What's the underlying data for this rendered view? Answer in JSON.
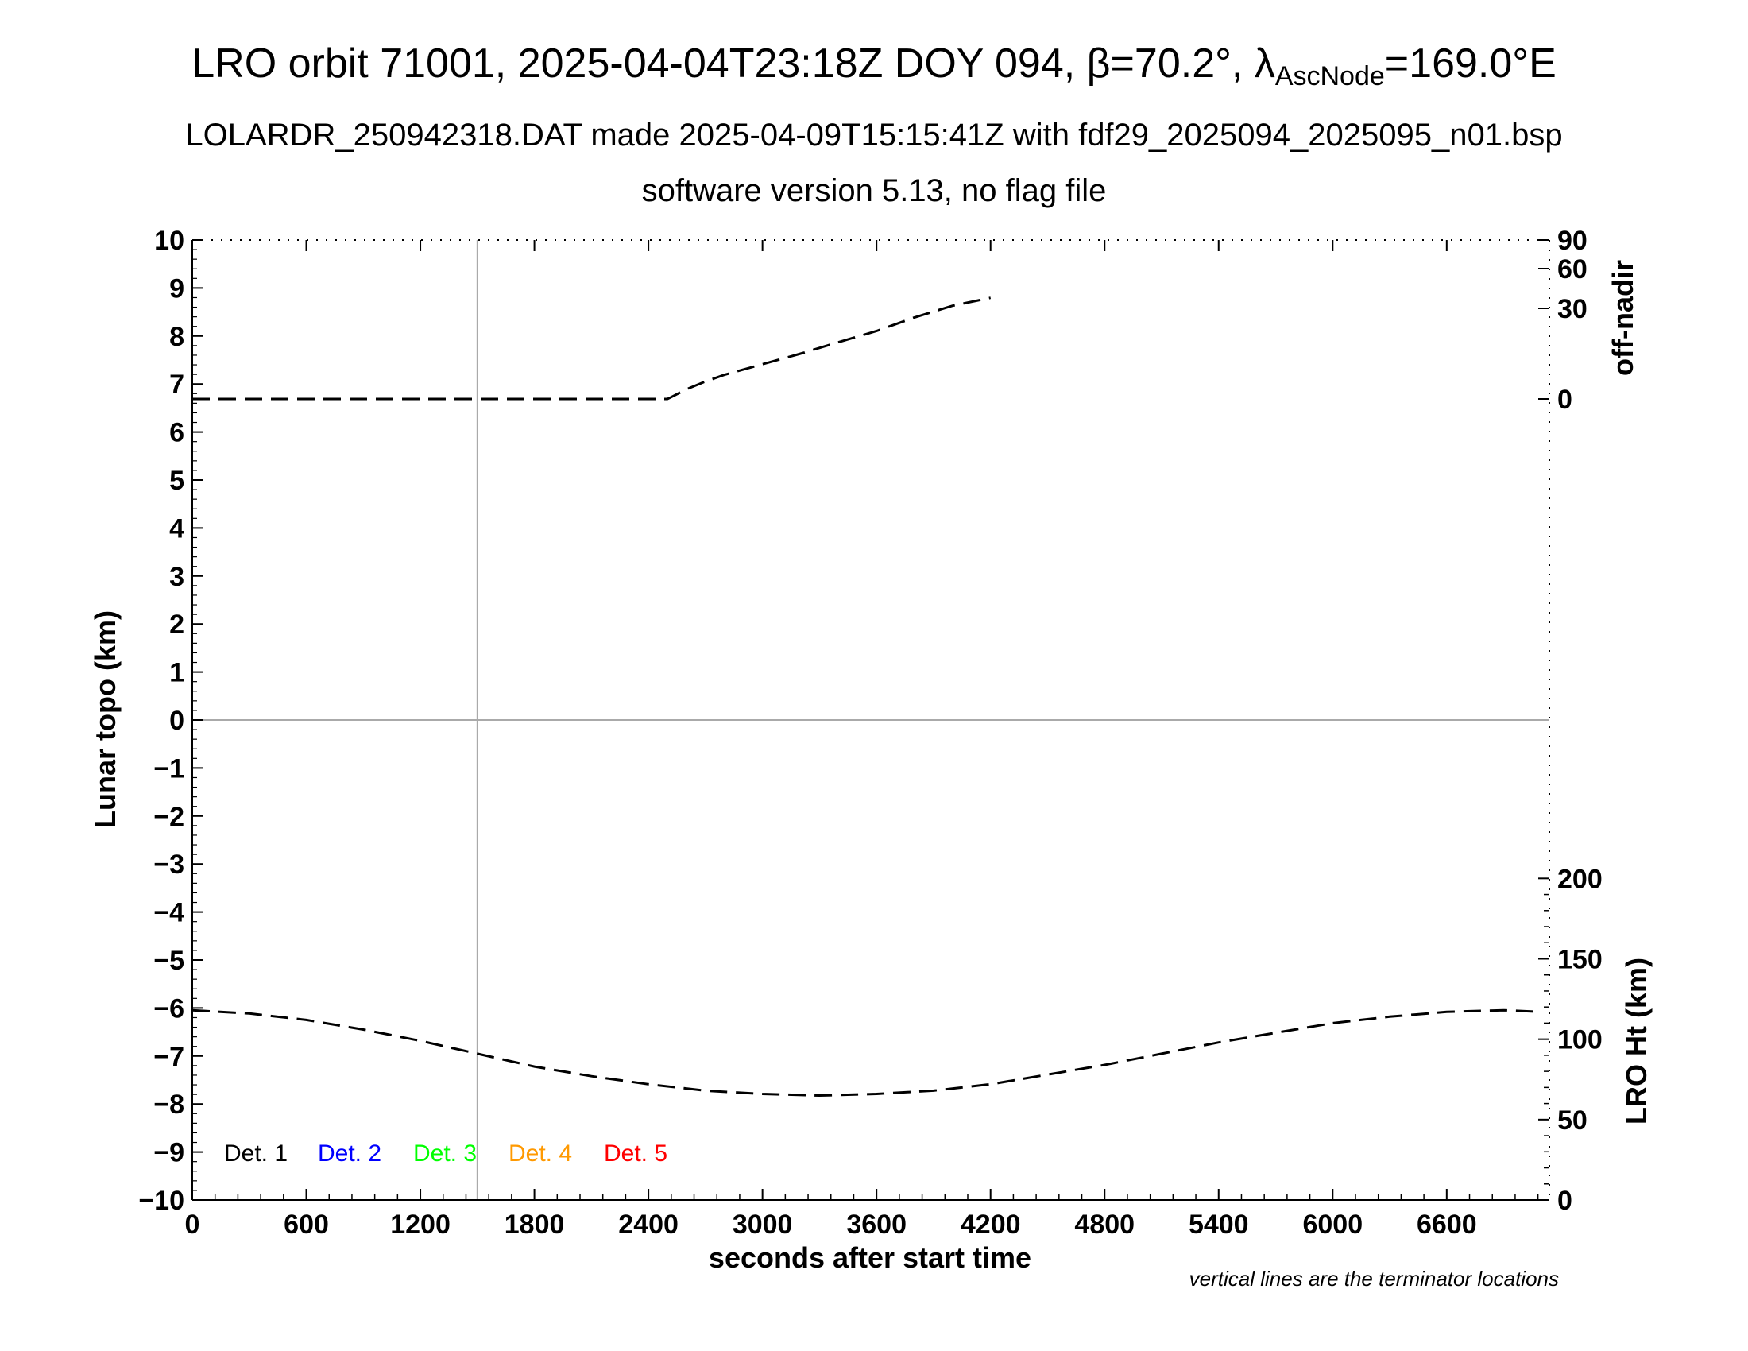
{
  "header": {
    "title_prefix": "LRO orbit 71001, 2025-04-04T23:18Z DOY 094, β=70.2°, λ",
    "title_sub": "AscNode",
    "title_suffix": "=169.0°E",
    "subtitle1": "LOLARDR_250942318.DAT made 2025-04-09T15:15:41Z with fdf29_2025094_2025095_n01.bsp",
    "subtitle2": "software version 5.13, no flag file"
  },
  "chart_data": {
    "type": "line",
    "xlabel": "seconds after start time",
    "ylabel": "Lunar topo (km)",
    "xlim": [
      0,
      7140
    ],
    "ylim": [
      -10,
      10
    ],
    "x_ticks": [
      0,
      600,
      1200,
      1800,
      2400,
      3000,
      3600,
      4200,
      4800,
      5400,
      6000,
      6600
    ],
    "y_ticks": [
      10,
      9,
      8,
      7,
      6,
      5,
      4,
      3,
      2,
      1,
      0,
      -1,
      -2,
      -3,
      -4,
      -5,
      -6,
      -7,
      -8,
      -9,
      -10
    ],
    "grid": false,
    "reference_lines": {
      "horizontal_y": 0,
      "vertical_x": [
        1500
      ],
      "color": "#aaaaaa"
    },
    "right_axis_top": {
      "label": "off-nadir",
      "ticks": [
        90,
        60,
        30,
        0
      ]
    },
    "right_axis_bottom": {
      "label": "LRO Ht (km)",
      "ylim": [
        0,
        200
      ],
      "ticks": [
        200,
        150,
        100,
        50,
        0
      ]
    },
    "series": [
      {
        "axis": "off-nadir",
        "style": "dashed",
        "color": "#000000",
        "x": [
          0,
          600,
          1200,
          1800,
          2200,
          2500,
          2520,
          2600,
          2700,
          2800,
          3000,
          3200,
          3400,
          3600,
          3800,
          4000,
          4200
        ],
        "y": [
          0,
          0,
          0,
          0,
          0,
          0,
          0.6,
          3.2,
          5.8,
          8.0,
          11.5,
          15.0,
          18.8,
          22.5,
          27.0,
          32.0,
          38.0
        ]
      },
      {
        "axis": "LRO Ht (km)",
        "style": "dashed",
        "color": "#000000",
        "x": [
          0,
          300,
          600,
          900,
          1200,
          1500,
          1800,
          2100,
          2400,
          2700,
          3000,
          3300,
          3600,
          3900,
          4200,
          4500,
          4800,
          5100,
          5400,
          5700,
          6000,
          6300,
          6600,
          6900,
          7100
        ],
        "y": [
          118,
          116,
          112,
          106,
          99,
          91,
          83,
          77,
          72,
          68,
          66,
          65,
          66,
          68,
          72,
          78,
          84,
          91,
          98,
          104,
          110,
          114,
          117,
          118,
          117
        ]
      }
    ],
    "legend": {
      "placement": "bottom-left",
      "entries": [
        {
          "label": "Det. 1",
          "color": "#000000"
        },
        {
          "label": "Det. 2",
          "color": "#0000ff"
        },
        {
          "label": "Det. 3",
          "color": "#00ff00"
        },
        {
          "label": "Det. 4",
          "color": "#ff9900"
        },
        {
          "label": "Det. 5",
          "color": "#ff0000"
        }
      ]
    },
    "annotation": "vertical lines are the terminator locations"
  }
}
